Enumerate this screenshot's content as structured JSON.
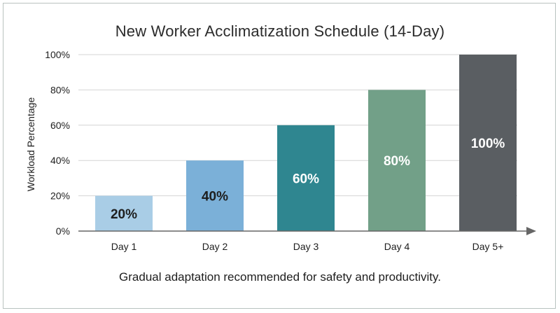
{
  "chart_data": {
    "type": "bar",
    "title": "New Worker Acclimatization Schedule (14-Day)",
    "xlabel": "",
    "ylabel": "Workload Percentage",
    "categories": [
      "Day 1",
      "Day 2",
      "Day 3",
      "Day 4",
      "Day 5+"
    ],
    "values": [
      20,
      40,
      60,
      80,
      100
    ],
    "value_labels": [
      "20%",
      "40%",
      "60%",
      "80%",
      "100%"
    ],
    "ylim": [
      0,
      100
    ],
    "yticks": [
      0,
      20,
      40,
      60,
      80,
      100
    ],
    "ytick_labels": [
      "0%",
      "20%",
      "40%",
      "60%",
      "80%",
      "100%"
    ],
    "grid": true,
    "legend": "none",
    "bar_colors": [
      "#a9cde6",
      "#7bb0d8",
      "#2f8690",
      "#72a088",
      "#5a5e62"
    ],
    "label_colors": [
      "#1e1e1e",
      "#1e1e1e",
      "#ffffff",
      "#ffffff",
      "#ffffff"
    ],
    "footnote": "Gradual adaptation recommended for safety and productivity."
  }
}
